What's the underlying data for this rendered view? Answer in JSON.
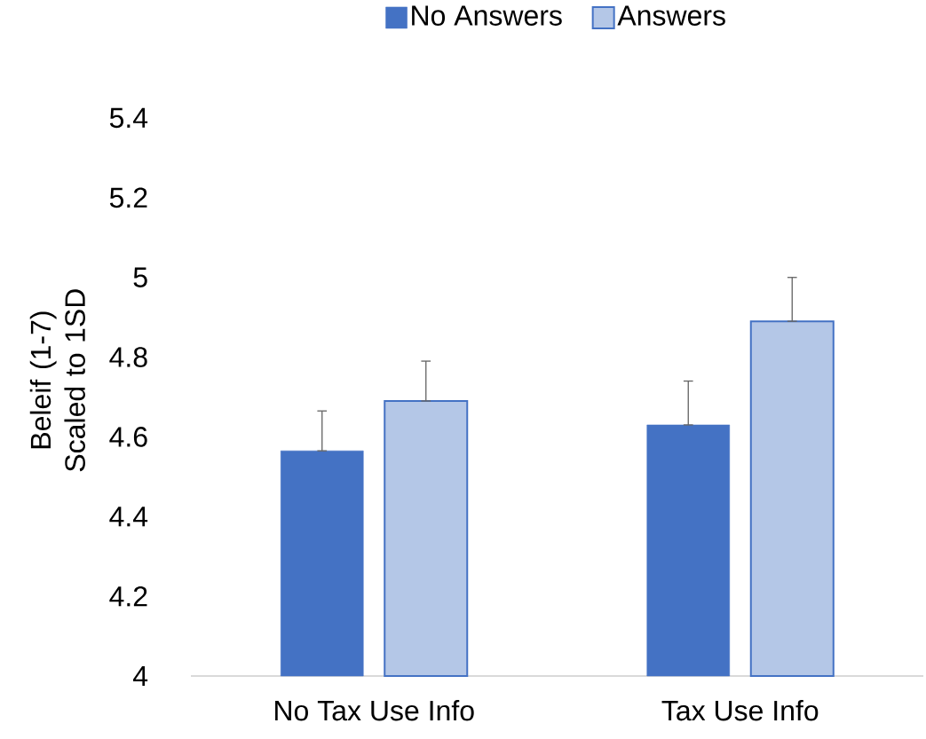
{
  "chart_data": {
    "type": "bar",
    "ylabel": "Beleif (1-7) Scaled to 1SD",
    "categories": [
      "No Tax Use Info",
      "Tax Use Info"
    ],
    "series": [
      {
        "name": "No Answers",
        "color": "#4472c4",
        "values": [
          4.565,
          4.63
        ],
        "errors": [
          [
            4.565,
            4.665
          ],
          [
            4.63,
            4.74
          ]
        ]
      },
      {
        "name": "Answers",
        "color": "#4472c4",
        "values": [
          4.69,
          4.89
        ],
        "errors": [
          [
            4.69,
            4.79
          ],
          [
            4.89,
            5.0
          ]
        ]
      }
    ],
    "ylim": [
      4,
      5.4
    ],
    "yticks": [
      4,
      4.2,
      4.4,
      4.6,
      4.8,
      5,
      5.2,
      5.4
    ],
    "grid": false,
    "legend": "top"
  }
}
